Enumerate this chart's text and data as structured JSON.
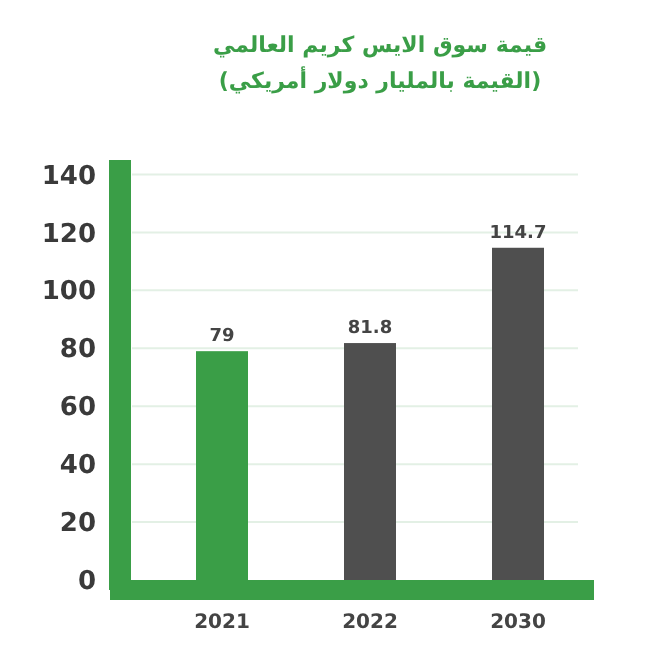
{
  "chart_data": {
    "type": "bar",
    "title": "قيمة سوق الايس كريم العالمي",
    "subtitle": "(القيمة بالمليار دولار أمريكي)",
    "categories": [
      "2021",
      "2022",
      "2030"
    ],
    "values": [
      79,
      81.8,
      114.7
    ],
    "colors": [
      "#3a9e47",
      "#4f4f4f",
      "#4f4f4f"
    ],
    "data_labels": true,
    "ylim": [
      0,
      145
    ],
    "yticks": [
      0,
      20,
      40,
      60,
      80,
      100,
      120,
      140
    ],
    "grid": "y"
  }
}
